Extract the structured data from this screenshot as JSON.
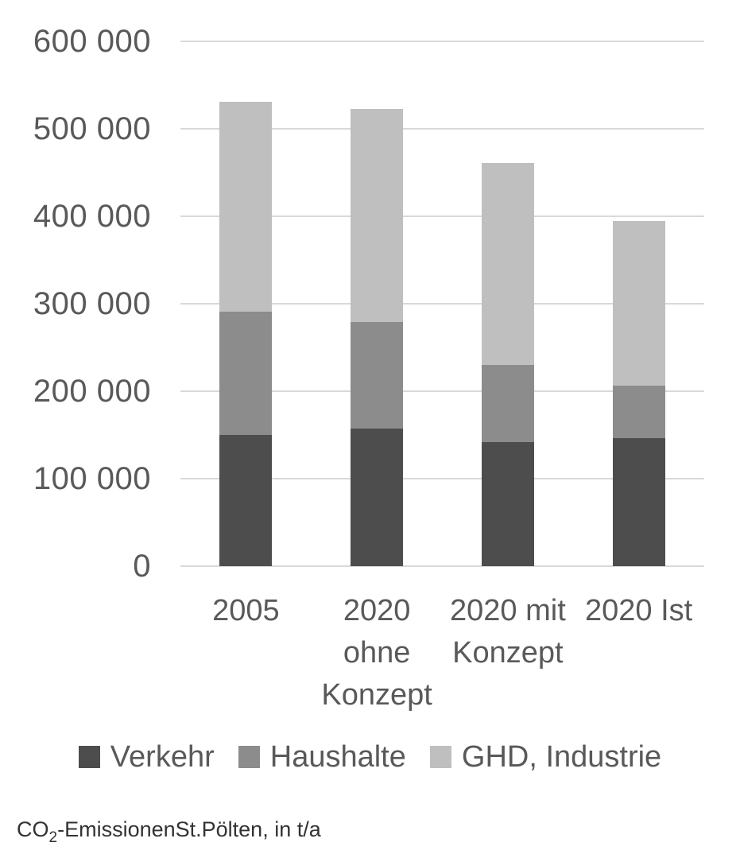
{
  "chart_data": {
    "type": "bar",
    "stacked": true,
    "categories": [
      "2005",
      "2020 ohne Konzept",
      "2020 mit Konzept",
      "2020 Ist"
    ],
    "series": [
      {
        "name": "Verkehr",
        "color": "#4d4d4d",
        "values": [
          150000,
          157000,
          142000,
          146000
        ]
      },
      {
        "name": "Haushalte",
        "color": "#8c8c8c",
        "values": [
          141000,
          122000,
          88000,
          60000
        ]
      },
      {
        "name": "GHD, Industrie",
        "color": "#bfbfbf",
        "values": [
          240000,
          244000,
          231000,
          189000
        ]
      }
    ],
    "stack_totals": [
      531000,
      523000,
      461000,
      395000
    ],
    "title": "",
    "xlabel": "",
    "ylabel": "",
    "ylim": [
      0,
      600000
    ],
    "ytick_interval": 100000,
    "ytick_labels": [
      "600 000",
      "500 000",
      "400 000",
      "300 000",
      "200 000",
      "100 000",
      "0"
    ],
    "grid": true,
    "gridline_color": "#d9d9d9",
    "axis_text_color": "#595959",
    "legend_position": "bottom"
  },
  "caption": {
    "prefix": "CO",
    "subscript": "2",
    "rest": "-EmissionenSt.Pölten, in t/a"
  }
}
